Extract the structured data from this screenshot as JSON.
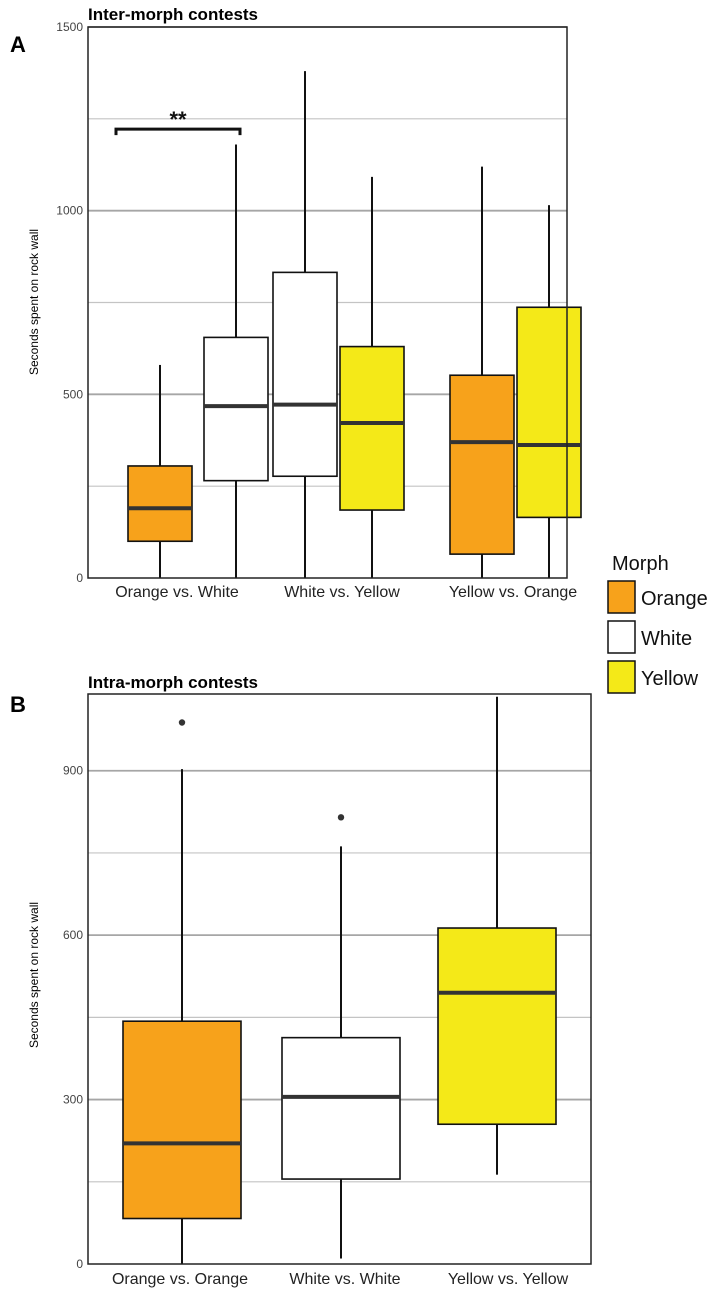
{
  "colors": {
    "Orange": "#F7A21B",
    "White": "#FFFFFF",
    "Yellow": "#F4E918",
    "grid": "#a6a6a6",
    "median": "#333333"
  },
  "legend": {
    "title": "Morph",
    "items": [
      "Orange",
      "White",
      "Yellow"
    ],
    "placement": "right, between panels"
  },
  "chart_data": [
    {
      "type": "box",
      "panel_label": "A",
      "title": "Inter-morph contests",
      "ylabel": "Seconds spent on rock wall",
      "xlabel": "",
      "ylim": [
        0,
        1500
      ],
      "yticks": [
        0,
        500,
        1000,
        1500
      ],
      "minor_gridlines": [
        250,
        750,
        1250
      ],
      "grid": true,
      "categories": [
        "Orange vs. White",
        "White vs. Yellow",
        "Yellow vs. Orange"
      ],
      "boxes": [
        {
          "category": "Orange vs. White",
          "morph": "Orange",
          "min": 0,
          "q1": 100,
          "median": 190,
          "q3": 305,
          "max": 580,
          "outliers": []
        },
        {
          "category": "Orange vs. White",
          "morph": "White",
          "min": 0,
          "q1": 265,
          "median": 468,
          "q3": 655,
          "max": 1180,
          "outliers": []
        },
        {
          "category": "White vs. Yellow",
          "morph": "White",
          "min": 0,
          "q1": 277,
          "median": 472,
          "q3": 832,
          "max": 1380,
          "outliers": []
        },
        {
          "category": "White vs. Yellow",
          "morph": "Yellow",
          "min": 0,
          "q1": 185,
          "median": 422,
          "q3": 630,
          "max": 1092,
          "outliers": []
        },
        {
          "category": "Yellow vs. Orange",
          "morph": "Orange",
          "min": 0,
          "q1": 65,
          "median": 370,
          "q3": 552,
          "max": 1120,
          "outliers": []
        },
        {
          "category": "Yellow vs. Orange",
          "morph": "Yellow",
          "min": 0,
          "q1": 165,
          "median": 362,
          "q3": 737,
          "max": 1015,
          "outliers": []
        }
      ],
      "annotations": [
        {
          "text": "**",
          "between": [
            "Orange vs. White|Orange",
            "Orange vs. White|White"
          ],
          "y": 1222
        }
      ]
    },
    {
      "type": "box",
      "panel_label": "B",
      "title": "Intra-morph contests",
      "ylabel": "Seconds spent on rock wall",
      "xlabel": "",
      "ylim": [
        0,
        1040
      ],
      "yticks": [
        0,
        300,
        600,
        900
      ],
      "minor_gridlines": [
        150,
        450,
        750
      ],
      "grid": true,
      "categories": [
        "Orange vs. Orange",
        "White vs. White",
        "Yellow vs. Yellow"
      ],
      "boxes": [
        {
          "category": "Orange vs. Orange",
          "morph": "Orange",
          "min": 0,
          "q1": 83,
          "median": 220,
          "q3": 443,
          "max": 903,
          "outliers": [
            988
          ]
        },
        {
          "category": "White vs. White",
          "morph": "White",
          "min": 10,
          "q1": 155,
          "median": 305,
          "q3": 413,
          "max": 762,
          "outliers": [
            815
          ]
        },
        {
          "category": "Yellow vs. Yellow",
          "morph": "Yellow",
          "min": 163,
          "q1": 255,
          "median": 495,
          "q3": 613,
          "max": 1035,
          "outliers": []
        }
      ],
      "annotations": []
    }
  ]
}
